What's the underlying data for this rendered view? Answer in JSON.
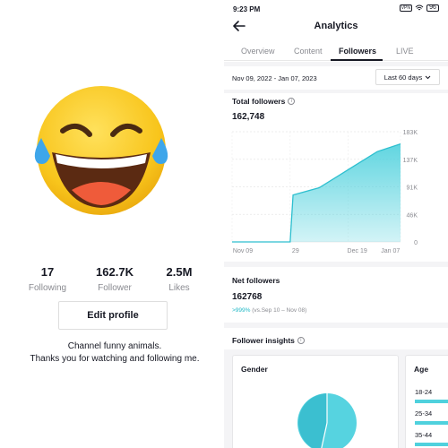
{
  "profile": {
    "avatar_icon": "laughing-face-emoji",
    "stats": [
      {
        "value": "17",
        "label": "Following"
      },
      {
        "value": "162.7K",
        "label": "Follower"
      },
      {
        "value": "2.5M",
        "label": "Likes"
      }
    ],
    "edit_button": "Edit profile",
    "bio_line1": "Channel funny animals.",
    "bio_line2": "Thanks you for watching and following me."
  },
  "analytics": {
    "status_time": "9:23 PM",
    "status_signal": "VPN",
    "status_battery": "96",
    "title": "Analytics",
    "tabs": [
      "Overview",
      "Content",
      "Followers",
      "LIVE"
    ],
    "active_tab": "Followers",
    "date_range": "Nov 09, 2022 - Jan 07, 2023",
    "range_select": "Last 60 days",
    "total_followers_label": "Total followers",
    "total_followers_value": "162,748",
    "net_followers_label": "Net followers",
    "net_followers_value": "162768",
    "net_change_pct": ">999%",
    "net_change_period": "(vs.Sep 10 – Nov 08)",
    "insights_label": "Follower insights",
    "gender_label": "Gender",
    "age_label": "Age",
    "age_groups": [
      "18-24",
      "25-34",
      "35-44"
    ],
    "accent_color": "#4fd1dd"
  },
  "chart_data": {
    "type": "area",
    "title": "Total followers",
    "x_ticks": [
      "Nov 09",
      "29",
      "Dec 19",
      "Jan 07"
    ],
    "y_ticks": [
      "0",
      "46K",
      "91K",
      "137K",
      "183K"
    ],
    "ylim": [
      0,
      183000
    ],
    "x_days": [
      0,
      20,
      21,
      30,
      40,
      50,
      60
    ],
    "x": [
      "Nov 09",
      "Nov 29",
      "Nov 30",
      "Dec 09",
      "Dec 19",
      "Dec 29",
      "Jan 07"
    ],
    "values": [
      0,
      0,
      78000,
      90000,
      120000,
      150000,
      162748
    ],
    "grid": true,
    "color": "#4fd1dd"
  }
}
